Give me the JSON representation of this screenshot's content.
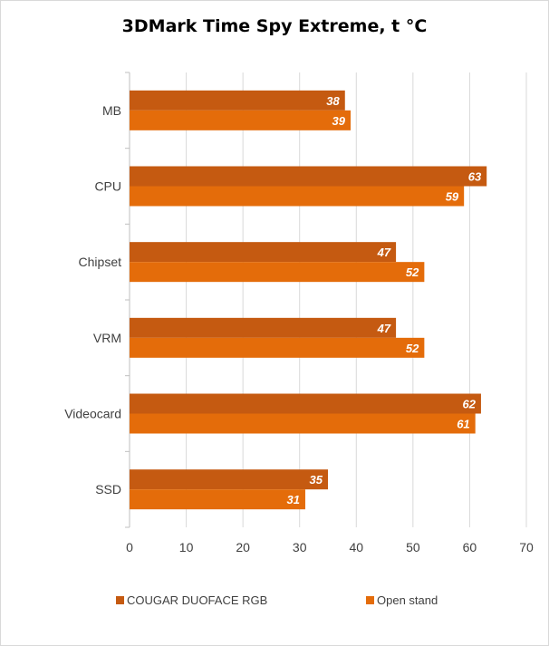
{
  "chart_data": {
    "type": "bar",
    "orientation": "horizontal",
    "title": "3DMark Time Spy Extreme, t °C",
    "categories": [
      "MB",
      "CPU",
      "Chipset",
      "VRM",
      "Videocard",
      "SSD"
    ],
    "series": [
      {
        "name": "COUGAR DUOFACE RGB",
        "color": "#c55a11",
        "values": [
          38,
          63,
          47,
          47,
          62,
          35
        ]
      },
      {
        "name": "Open stand",
        "color": "#e46c0a",
        "values": [
          39,
          59,
          52,
          52,
          61,
          31
        ]
      }
    ],
    "x_ticks": [
      "0",
      "10",
      "20",
      "30",
      "40",
      "50",
      "60",
      "70"
    ],
    "xlim": [
      0,
      70
    ],
    "grid": true,
    "legend_position": "bottom",
    "xlabel": "",
    "ylabel": ""
  }
}
